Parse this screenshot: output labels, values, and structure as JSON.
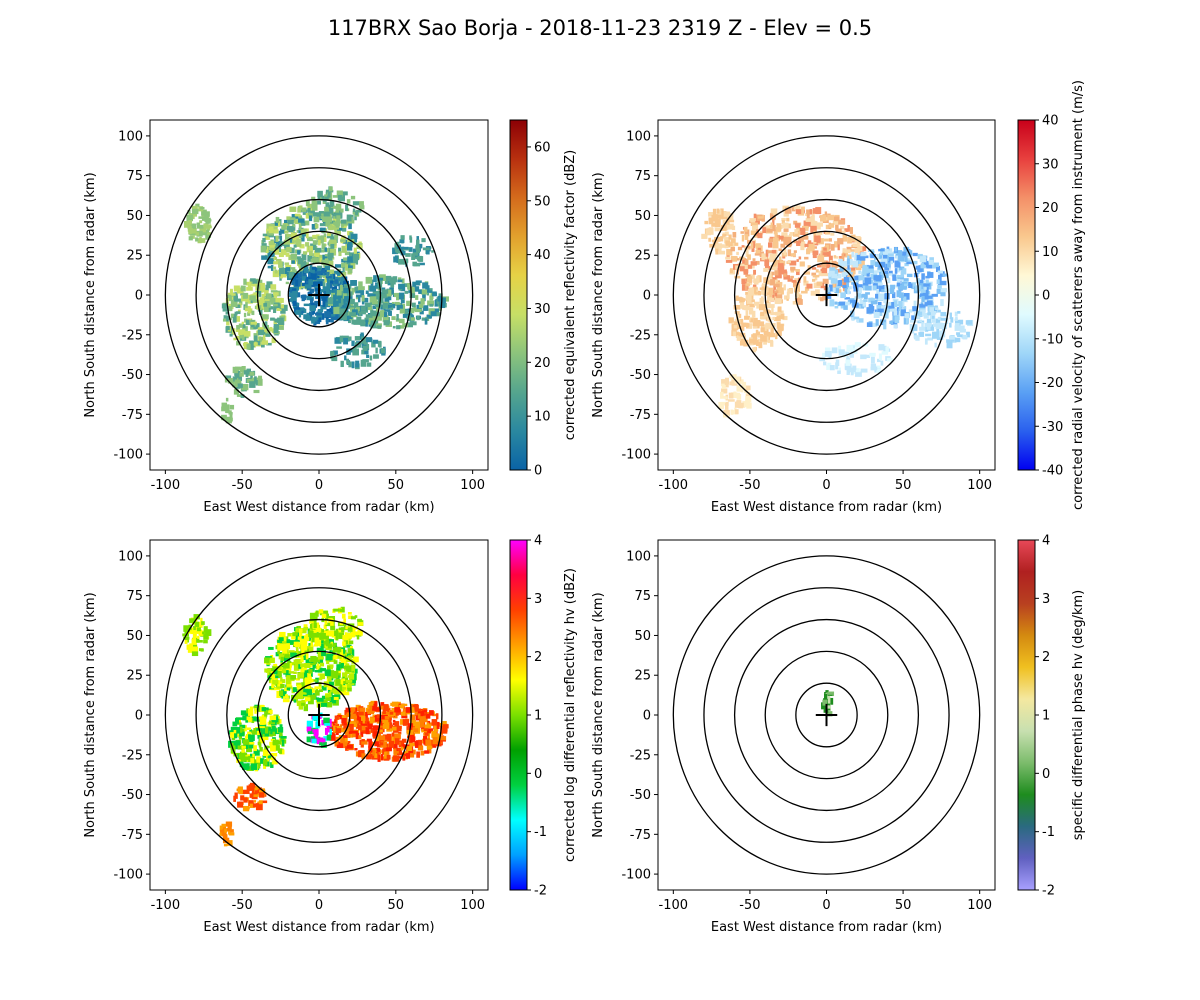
{
  "title": "117BRX Sao Borja - 2018-11-23 2319 Z -  Elev = 0.5",
  "chart_data": [
    {
      "type": "heatmap",
      "name": "reflectivity",
      "xlabel": "East West distance from radar (km)",
      "ylabel": "North South distance from radar (km)",
      "xlim": [
        -110,
        110
      ],
      "ylim": [
        -110,
        110
      ],
      "xticks": [
        -100,
        -50,
        0,
        50,
        100
      ],
      "yticks": [
        -100,
        -75,
        -50,
        -25,
        0,
        25,
        50,
        75,
        100
      ],
      "range_rings_km": [
        20,
        40,
        60,
        80,
        100
      ],
      "colorbar": {
        "label": "corrected equivalent reflectivity factor (dBZ)",
        "min": 0,
        "max": 65,
        "ticks": [
          0,
          10,
          20,
          30,
          40,
          50,
          60
        ],
        "colors": [
          "#0a63a6",
          "#2a88a0",
          "#55a58e",
          "#8cc47c",
          "#c7df66",
          "#e6d246",
          "#e2a12d",
          "#d46b1c",
          "#b8300f",
          "#8c0005"
        ]
      }
    },
    {
      "type": "heatmap",
      "name": "velocity",
      "xlabel": "East West distance from radar (km)",
      "ylabel": "North South distance from radar (km)",
      "xlim": [
        -110,
        110
      ],
      "ylim": [
        -110,
        110
      ],
      "xticks": [
        -100,
        -50,
        0,
        50,
        100
      ],
      "yticks": [
        -100,
        -75,
        -50,
        -25,
        0,
        25,
        50,
        75,
        100
      ],
      "range_rings_km": [
        20,
        40,
        60,
        80,
        100
      ],
      "colorbar": {
        "label": "corrected radial velocity of scatterers away from instrument (m/s)",
        "min": -40,
        "max": 40,
        "ticks": [
          -40,
          -30,
          -20,
          -10,
          0,
          10,
          20,
          30,
          40
        ],
        "colors": [
          "#0000f0",
          "#2a60ee",
          "#5aa0f4",
          "#9fd6f8",
          "#e0fbff",
          "#fff8d6",
          "#f9c88e",
          "#f49068",
          "#e8403e",
          "#c8001a"
        ]
      }
    },
    {
      "type": "heatmap",
      "name": "differential-reflectivity",
      "xlabel": "East West distance from radar (km)",
      "ylabel": "North South distance from radar (km)",
      "xlim": [
        -110,
        110
      ],
      "ylim": [
        -110,
        110
      ],
      "xticks": [
        -100,
        -50,
        0,
        50,
        100
      ],
      "yticks": [
        -100,
        -75,
        -50,
        -25,
        0,
        25,
        50,
        75,
        100
      ],
      "range_rings_km": [
        20,
        40,
        60,
        80,
        100
      ],
      "colorbar": {
        "label": "corrected log differential reflectivity hv (dBZ)",
        "min": -2,
        "max": 4,
        "ticks": [
          -2,
          -1,
          0,
          1,
          2,
          3,
          4
        ],
        "colors": [
          "#0000ff",
          "#00a0ff",
          "#00ffff",
          "#00d040",
          "#00a000",
          "#7be000",
          "#ffff00",
          "#ffa000",
          "#ff4000",
          "#ff0040",
          "#ff00ff"
        ]
      }
    },
    {
      "type": "heatmap",
      "name": "specific-differential-phase",
      "xlabel": "East West distance from radar (km)",
      "ylabel": "North South distance from radar (km)",
      "xlim": [
        -110,
        110
      ],
      "ylim": [
        -110,
        110
      ],
      "xticks": [
        -100,
        -50,
        0,
        50,
        100
      ],
      "yticks": [
        -100,
        -75,
        -50,
        -25,
        0,
        25,
        50,
        75,
        100
      ],
      "range_rings_km": [
        20,
        40,
        60,
        80,
        100
      ],
      "colorbar": {
        "label": "specific differential phase hv (deg/km)",
        "min": -2,
        "max": 4,
        "ticks": [
          -2,
          -1,
          0,
          1,
          2,
          3,
          4
        ],
        "colors": [
          "#a8a0ff",
          "#6060c0",
          "#2a6a80",
          "#1e8c1e",
          "#7cbc6c",
          "#c8e0b0",
          "#f4e8a0",
          "#f0c020",
          "#d48a10",
          "#b84020",
          "#b02020",
          "#e84858"
        ]
      }
    }
  ]
}
